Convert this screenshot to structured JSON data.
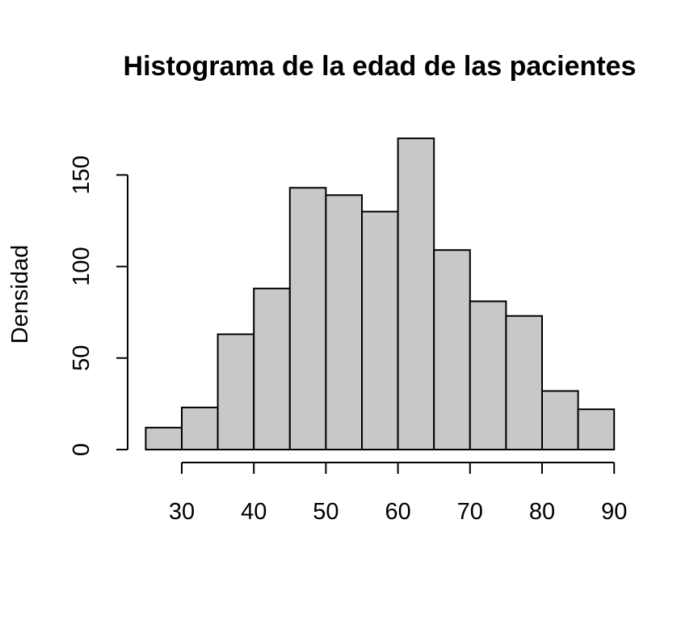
{
  "chart_data": {
    "type": "bar",
    "title": "Histograma de la edad de las pacientes",
    "xlabel": "",
    "ylabel": "Densidad",
    "bins": [
      {
        "from": 25,
        "to": 30,
        "value": 12
      },
      {
        "from": 30,
        "to": 35,
        "value": 23
      },
      {
        "from": 35,
        "to": 40,
        "value": 63
      },
      {
        "from": 40,
        "to": 45,
        "value": 88
      },
      {
        "from": 45,
        "to": 50,
        "value": 143
      },
      {
        "from": 50,
        "to": 55,
        "value": 139
      },
      {
        "from": 55,
        "to": 60,
        "value": 130
      },
      {
        "from": 60,
        "to": 65,
        "value": 170
      },
      {
        "from": 65,
        "to": 70,
        "value": 109
      },
      {
        "from": 70,
        "to": 75,
        "value": 81
      },
      {
        "from": 75,
        "to": 80,
        "value": 73
      },
      {
        "from": 80,
        "to": 85,
        "value": 32
      },
      {
        "from": 85,
        "to": 90,
        "value": 22
      }
    ],
    "xticks": [
      30,
      40,
      50,
      60,
      70,
      80,
      90
    ],
    "yticks": [
      0,
      50,
      100,
      150
    ],
    "xlim": [
      30,
      90
    ],
    "ylim": [
      0,
      150
    ],
    "bar_color": "#c8c8c8",
    "grid": false,
    "legend": "none"
  }
}
